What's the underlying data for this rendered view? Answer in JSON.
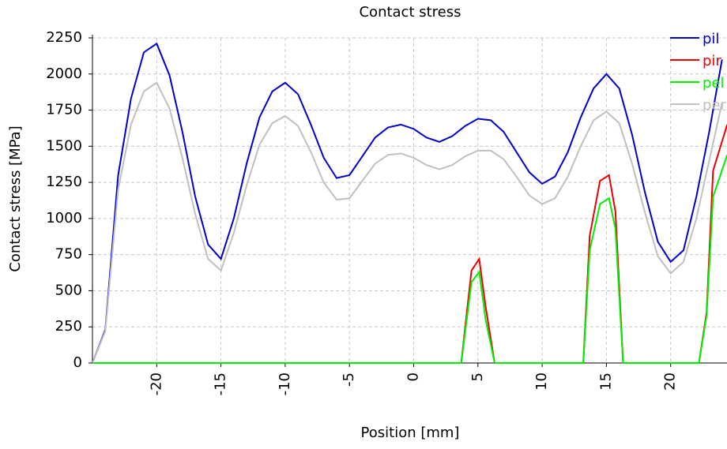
{
  "chart_data": {
    "type": "line",
    "title": "Contact stress",
    "x_label": "Position [mm]",
    "y_label": "Contact stress [MPa]",
    "xlim": [
      -25,
      25
    ],
    "ylim": [
      0,
      2250
    ],
    "xticks": [
      -20,
      -15,
      -10,
      -5,
      0,
      5,
      10,
      15,
      20
    ],
    "yticks": [
      0,
      250,
      500,
      750,
      1000,
      1250,
      1500,
      1750,
      2000,
      2250
    ],
    "grid": true,
    "legend": "top-right",
    "series": [
      {
        "name": "pil",
        "color": "#0000cc",
        "x": [
          -25,
          -24,
          -23,
          -22,
          -21,
          -20,
          -19,
          -18,
          -17,
          -16,
          -15,
          -14,
          -13,
          -12,
          -11,
          -10,
          -9,
          -8,
          -7,
          -6,
          -5,
          -4,
          -3,
          -2,
          -1,
          0,
          1,
          2,
          3,
          4,
          5,
          6,
          7,
          8,
          9,
          10,
          11,
          12,
          13,
          14,
          15,
          16,
          17,
          18,
          19,
          20,
          21,
          22,
          23,
          24
        ],
        "values": [
          0,
          230,
          1300,
          1830,
          2150,
          2210,
          1990,
          1600,
          1150,
          820,
          720,
          1000,
          1380,
          1700,
          1880,
          1940,
          1860,
          1650,
          1420,
          1280,
          1300,
          1430,
          1560,
          1630,
          1650,
          1620,
          1560,
          1530,
          1570,
          1640,
          1690,
          1680,
          1600,
          1460,
          1320,
          1240,
          1290,
          1460,
          1700,
          1900,
          2000,
          1900,
          1580,
          1180,
          840,
          700,
          780,
          1150,
          1600,
          2100
        ]
      },
      {
        "name": "pir",
        "color": "#ee0000",
        "x": [
          -25,
          3.7,
          4.5,
          5.1,
          5.6,
          6.3,
          13.2,
          13.7,
          14.5,
          15.2,
          15.7,
          16.3,
          22.2,
          22.8,
          23.3,
          24.4
        ],
        "values": [
          0,
          0,
          640,
          720,
          390,
          0,
          0,
          880,
          1260,
          1300,
          1050,
          0,
          0,
          350,
          1330,
          1650
        ]
      },
      {
        "name": "pel",
        "color": "#00ee00",
        "x": [
          -25,
          3.7,
          4.5,
          5.1,
          5.6,
          6.3,
          13.2,
          13.7,
          14.5,
          15.2,
          15.7,
          16.3,
          22.2,
          22.8,
          23.3,
          24.4
        ],
        "values": [
          0,
          0,
          560,
          630,
          300,
          0,
          0,
          780,
          1100,
          1140,
          930,
          0,
          0,
          330,
          1150,
          1440
        ]
      },
      {
        "name": "per",
        "color": "#c0c0c0",
        "x": [
          -25,
          -24,
          -23,
          -22,
          -21,
          -20,
          -19,
          -18,
          -17,
          -16,
          -15,
          -14,
          -13,
          -12,
          -11,
          -10,
          -9,
          -8,
          -7,
          -6,
          -5,
          -4,
          -3,
          -2,
          -1,
          0,
          1,
          2,
          3,
          4,
          5,
          6,
          7,
          8,
          9,
          10,
          11,
          12,
          13,
          14,
          15,
          16,
          17,
          18,
          19,
          20,
          21,
          22,
          23,
          24
        ],
        "values": [
          0,
          220,
          1200,
          1650,
          1880,
          1940,
          1760,
          1420,
          1030,
          720,
          640,
          900,
          1230,
          1510,
          1660,
          1710,
          1640,
          1460,
          1250,
          1130,
          1140,
          1260,
          1380,
          1440,
          1450,
          1420,
          1370,
          1340,
          1370,
          1430,
          1470,
          1470,
          1410,
          1290,
          1160,
          1100,
          1140,
          1290,
          1500,
          1680,
          1740,
          1660,
          1380,
          1040,
          740,
          620,
          700,
          1000,
          1400,
          1800
        ]
      }
    ]
  }
}
